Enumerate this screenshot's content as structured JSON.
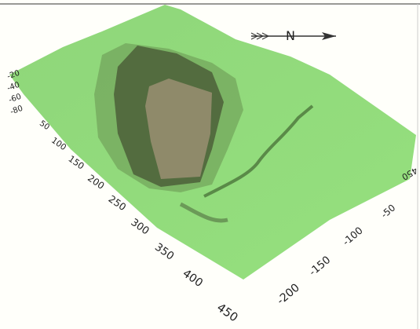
{
  "compass": "N",
  "depth_ticks": [
    -20,
    -40,
    -60,
    -80
  ],
  "left_axis_ticks": [
    50,
    100,
    150,
    200,
    250,
    300,
    350,
    400,
    450
  ],
  "right_axis_ticks": [
    450,
    -50,
    -100,
    -150,
    -200
  ]
}
